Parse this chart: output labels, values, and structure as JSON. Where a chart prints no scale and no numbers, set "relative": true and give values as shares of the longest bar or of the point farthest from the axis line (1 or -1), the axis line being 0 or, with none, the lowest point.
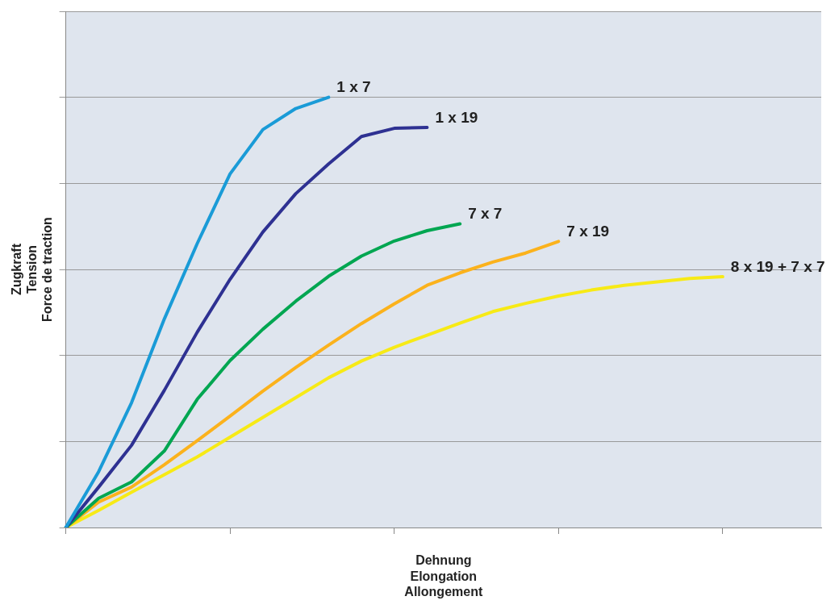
{
  "chart_data": {
    "type": "line",
    "relative": true,
    "xlabel": "Dehnung\nElongation\nAllongement",
    "ylabel": "Zugkraft\nTension\nForce de traction",
    "grid": "y",
    "legend": false,
    "marker": "none",
    "line_style": "solid",
    "categories": [
      null,
      null,
      null,
      null,
      null,
      null,
      null,
      null,
      null,
      null,
      null,
      null,
      null,
      null,
      null,
      null,
      null,
      null,
      null,
      null,
      null,
      null,
      null,
      null
    ],
    "series": [
      {
        "name": "1 x 7",
        "color": "#1a9bd7",
        "values": [
          0,
          0.13,
          0.29,
          0.485,
          0.66,
          0.822,
          0.925,
          0.974,
          1,
          null,
          null,
          null,
          null,
          null,
          null,
          null,
          null,
          null,
          null,
          null,
          null,
          null,
          null,
          null
        ]
      },
      {
        "name": "1 x 19",
        "color": "#2e3192",
        "values": [
          0,
          0.094,
          0.191,
          0.319,
          0.454,
          0.577,
          0.687,
          0.776,
          0.845,
          0.909,
          0.928,
          0.93,
          null,
          null,
          null,
          null,
          null,
          null,
          null,
          null,
          null,
          null,
          null,
          null
        ]
      },
      {
        "name": "7 x 7",
        "color": "#00a651",
        "values": [
          0,
          0.068,
          0.106,
          0.178,
          0.298,
          0.388,
          0.461,
          0.526,
          0.584,
          0.631,
          0.666,
          0.69,
          0.706,
          null,
          null,
          null,
          null,
          null,
          null,
          null,
          null,
          null,
          null,
          null
        ]
      },
      {
        "name": "7 x 19",
        "color": "#fbb21c",
        "values": [
          0,
          0.059,
          0.094,
          0.146,
          0.202,
          0.259,
          0.317,
          0.372,
          0.424,
          0.474,
          0.52,
          0.563,
          0.592,
          0.617,
          0.638,
          0.665,
          null,
          null,
          null,
          null,
          null,
          null,
          null,
          null
        ]
      },
      {
        "name": "8 x 19 + 7 x 7",
        "color": "#f7ea16",
        "values": [
          0,
          0.04,
          0.082,
          0.123,
          0.164,
          0.21,
          0.256,
          0.302,
          0.348,
          0.387,
          0.419,
          0.447,
          0.475,
          0.502,
          0.521,
          0.538,
          0.552,
          0.563,
          0.571,
          0.579,
          0.583,
          null,
          null,
          null
        ]
      }
    ]
  }
}
